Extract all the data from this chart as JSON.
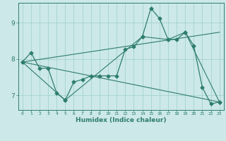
{
  "xlabel": "Humidex (Indice chaleur)",
  "background_color": "#cce8e8",
  "grid_color": "#9ecece",
  "line_color": "#2e7d6e",
  "xlim": [
    -0.5,
    23.5
  ],
  "ylim": [
    6.6,
    9.55
  ],
  "xticks": [
    0,
    1,
    2,
    3,
    4,
    5,
    6,
    7,
    8,
    9,
    10,
    11,
    12,
    13,
    14,
    15,
    16,
    17,
    18,
    19,
    20,
    21,
    22,
    23
  ],
  "yticks": [
    7,
    8,
    9
  ],
  "line1_x": [
    0,
    1,
    2,
    3,
    4,
    5,
    6,
    7,
    8,
    9,
    10,
    11,
    12,
    13,
    14,
    15,
    16,
    17,
    18,
    19,
    20,
    21,
    22,
    23
  ],
  "line1_y": [
    7.92,
    8.18,
    7.75,
    7.75,
    7.07,
    6.87,
    7.37,
    7.44,
    7.54,
    7.54,
    7.54,
    7.54,
    8.27,
    8.34,
    8.62,
    9.4,
    9.12,
    8.54,
    8.54,
    8.74,
    8.37,
    7.22,
    6.77,
    6.82
  ],
  "line2_x": [
    0,
    5,
    14,
    17,
    19,
    23
  ],
  "line2_y": [
    7.92,
    6.87,
    8.62,
    8.54,
    8.74,
    6.82
  ],
  "line3_x": [
    0,
    23
  ],
  "line3_y": [
    7.92,
    8.74
  ],
  "line4_x": [
    0,
    23
  ],
  "line4_y": [
    7.92,
    6.82
  ]
}
